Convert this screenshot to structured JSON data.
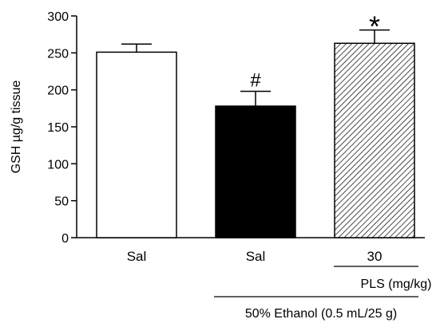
{
  "chart_data": {
    "type": "bar",
    "title": "",
    "xlabel": "",
    "ylabel": "GSH µg/g tissue",
    "ylim": [
      0,
      300
    ],
    "yticks": [
      0,
      50,
      100,
      150,
      200,
      250,
      300
    ],
    "categories": [
      "Sal",
      "Sal",
      "30"
    ],
    "values": [
      251,
      178,
      263
    ],
    "errors": [
      11,
      20,
      18
    ],
    "fills": [
      "white",
      "black",
      "hatched"
    ],
    "annotations": [
      "",
      "#",
      "*"
    ],
    "group_labels": {
      "pls": "PLS (mg/kg)",
      "ethanol": "50% Ethanol (0.5 mL/25 g)"
    },
    "grid": false,
    "legend": "none"
  },
  "colors": {
    "outline": "#000000",
    "white_bar": "#ffffff",
    "black_bar": "#000000"
  }
}
